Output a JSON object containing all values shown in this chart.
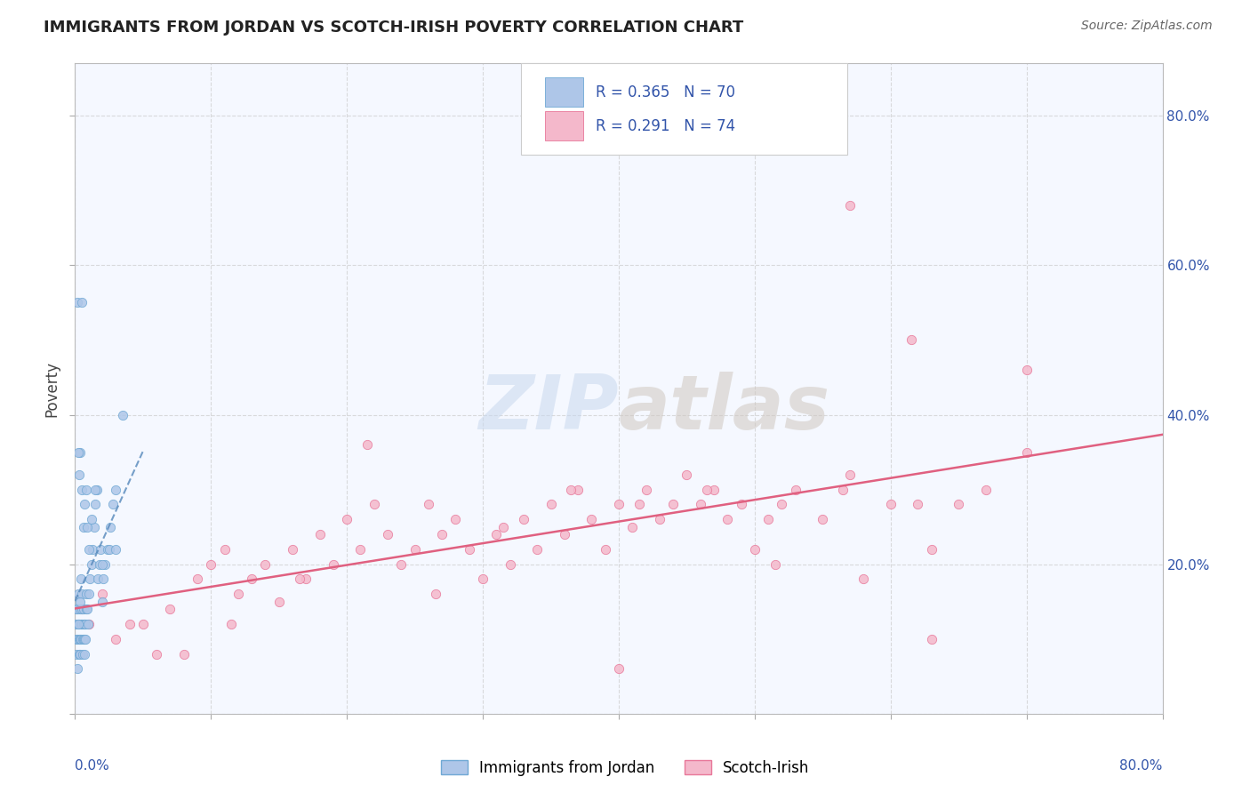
{
  "title": "IMMIGRANTS FROM JORDAN VS SCOTCH-IRISH POVERTY CORRELATION CHART",
  "source": "Source: ZipAtlas.com",
  "ylabel": "Poverty",
  "legend1_r": "R = 0.365",
  "legend1_n": "N = 70",
  "legend2_r": "R = 0.291",
  "legend2_n": "N = 74",
  "color_blue_fill": "#aec6e8",
  "color_blue_edge": "#6fa8d4",
  "color_blue_line": "#5588bb",
  "color_pink_fill": "#f4b8cb",
  "color_pink_edge": "#e87799",
  "color_pink_line": "#e06080",
  "color_text_blue": "#3355aa",
  "color_text_dark": "#223355",
  "grid_color": "#cccccc",
  "bg_color": "#ffffff",
  "plot_bg": "#f5f8ff",
  "xlim": [
    0,
    80
  ],
  "ylim": [
    0,
    87
  ],
  "blue_x": [
    0.05,
    0.08,
    0.1,
    0.12,
    0.15,
    0.18,
    0.2,
    0.22,
    0.25,
    0.28,
    0.3,
    0.32,
    0.35,
    0.38,
    0.4,
    0.42,
    0.45,
    0.48,
    0.5,
    0.52,
    0.55,
    0.58,
    0.6,
    0.62,
    0.65,
    0.68,
    0.7,
    0.72,
    0.75,
    0.78,
    0.8,
    0.85,
    0.9,
    0.95,
    1.0,
    1.1,
    1.2,
    1.3,
    1.4,
    1.5,
    1.6,
    1.7,
    1.8,
    1.9,
    2.0,
    2.1,
    2.2,
    2.4,
    2.6,
    2.8,
    3.0,
    3.5,
    0.3,
    0.4,
    0.5,
    0.6,
    0.7,
    0.8,
    0.9,
    1.0,
    1.2,
    1.5,
    2.0,
    2.5,
    0.15,
    0.25,
    0.35,
    0.45,
    3.0,
    0.25
  ],
  "blue_y": [
    12,
    14,
    10,
    8,
    6,
    10,
    14,
    16,
    12,
    8,
    10,
    12,
    14,
    10,
    8,
    12,
    10,
    14,
    16,
    12,
    10,
    8,
    12,
    10,
    14,
    12,
    10,
    8,
    12,
    10,
    14,
    16,
    14,
    12,
    16,
    18,
    20,
    22,
    25,
    28,
    30,
    18,
    20,
    22,
    15,
    18,
    20,
    22,
    25,
    28,
    30,
    40,
    32,
    35,
    30,
    25,
    28,
    30,
    25,
    22,
    26,
    30,
    20,
    22,
    55,
    35,
    15,
    18,
    22,
    12
  ],
  "blue_y_outlier1_x": 0.5,
  "blue_y_outlier1_y": 55,
  "pink_x": [
    0.5,
    1.0,
    2.0,
    3.0,
    5.0,
    7.0,
    8.0,
    9.0,
    10.0,
    11.0,
    12.0,
    13.0,
    14.0,
    15.0,
    16.0,
    17.0,
    18.0,
    19.0,
    20.0,
    21.0,
    22.0,
    23.0,
    24.0,
    25.0,
    26.0,
    27.0,
    28.0,
    29.0,
    30.0,
    31.0,
    32.0,
    33.0,
    34.0,
    35.0,
    36.0,
    37.0,
    38.0,
    39.0,
    40.0,
    41.0,
    42.0,
    43.0,
    44.0,
    45.0,
    46.0,
    47.0,
    48.0,
    49.0,
    50.0,
    51.0,
    52.0,
    53.0,
    55.0,
    57.0,
    58.0,
    60.0,
    62.0,
    63.0,
    65.0,
    67.0,
    70.0,
    4.0,
    6.0,
    11.5,
    16.5,
    21.5,
    26.5,
    31.5,
    36.5,
    41.5,
    46.5,
    51.5,
    56.5,
    61.5
  ],
  "pink_y": [
    14,
    12,
    16,
    10,
    12,
    14,
    8,
    18,
    20,
    22,
    16,
    18,
    20,
    15,
    22,
    18,
    24,
    20,
    26,
    22,
    28,
    24,
    20,
    22,
    28,
    24,
    26,
    22,
    18,
    24,
    20,
    26,
    22,
    28,
    24,
    30,
    26,
    22,
    28,
    25,
    30,
    26,
    28,
    32,
    28,
    30,
    26,
    28,
    22,
    26,
    28,
    30,
    26,
    32,
    18,
    28,
    28,
    22,
    28,
    30,
    35,
    12,
    8,
    12,
    18,
    36,
    16,
    25,
    30,
    28,
    30,
    20,
    30,
    50
  ],
  "pink_outlier_x": 57,
  "pink_outlier_y": 68,
  "pink_outlier2_x": 70,
  "pink_outlier2_y": 46,
  "pink_low1_x": 40,
  "pink_low1_y": 6,
  "pink_low2_x": 63,
  "pink_low2_y": 10
}
